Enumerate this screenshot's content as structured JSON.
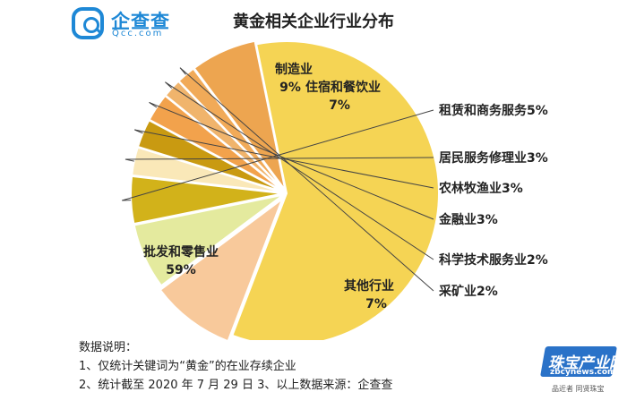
{
  "logo": {
    "name": "企查查",
    "sub": "Qcc.com"
  },
  "watermark": {
    "text": "珠宝产业网",
    "url": "zbcynews.com",
    "slogan": "品近者 同贤珠宝"
  },
  "notes": {
    "heading": "数据说明：",
    "line1": "1、仅统计关键词为“黄金”的在业存续企业",
    "line2": "2、统计截至 2020 年 7 月 29 日    3、以上数据来源：企查查"
  },
  "chart_data": {
    "type": "pie",
    "title": "黄金相关企业行业分布",
    "unit": "%",
    "legend": "none",
    "slices": [
      {
        "name": "批发和零售业",
        "value": 59,
        "color": "#f5d454"
      },
      {
        "name": "制造业",
        "value": 9,
        "color": "#f8c99b"
      },
      {
        "name": "住宿和餐饮业",
        "value": 7,
        "color": "#e4ea9e"
      },
      {
        "name": "租赁和商务服务",
        "value": 5,
        "color": "#d2b21a"
      },
      {
        "name": "居民服务修理业",
        "value": 3,
        "color": "#fae8b8"
      },
      {
        "name": "农林牧渔业",
        "value": 3,
        "color": "#c99a11"
      },
      {
        "name": "金融业",
        "value": 3,
        "color": "#f2a24c"
      },
      {
        "name": "科学技术服务业",
        "value": 2,
        "color": "#f0b46c"
      },
      {
        "name": "采矿业",
        "value": 2,
        "color": "#f1aa58"
      },
      {
        "name": "其他行业",
        "value": 7,
        "color": "#eda550"
      }
    ]
  }
}
